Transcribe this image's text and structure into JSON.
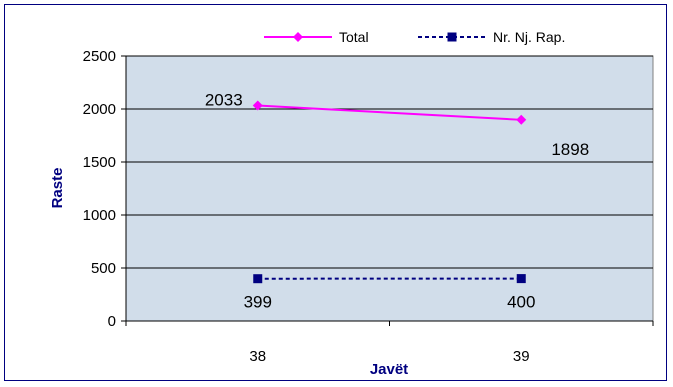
{
  "chart_data": {
    "type": "line",
    "categories": [
      "38",
      "39"
    ],
    "xlabel": "Javët",
    "ylabel": "Raste",
    "ylim": [
      0,
      2500
    ],
    "yticks": [
      0,
      500,
      1000,
      1500,
      2000,
      2500
    ],
    "grid": true,
    "legend_position": "top",
    "series": [
      {
        "name": "Total",
        "values": [
          2033,
          1898
        ],
        "color": "#FF00FF",
        "line_style": "solid",
        "marker": "diamond"
      },
      {
        "name": "Nr. Nj. Rap.",
        "values": [
          399,
          400
        ],
        "color": "#000080",
        "line_style": "dashed",
        "marker": "square"
      }
    ]
  },
  "colors": {
    "plot_background": "#D1DDEA",
    "gridline": "#000000",
    "axis_title": "#000080"
  }
}
